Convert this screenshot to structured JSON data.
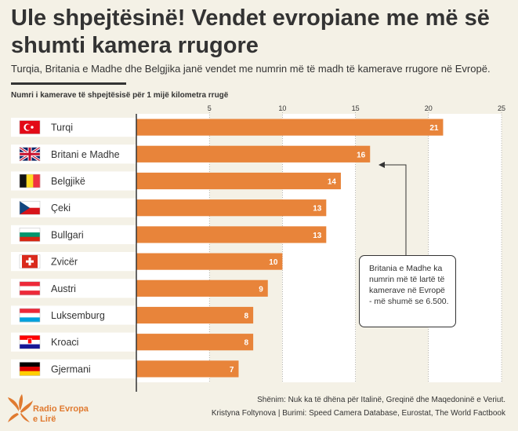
{
  "title": "Ule shpejtësinë! Vendet evropiane me më së shumti kamera rrugore",
  "subtitle": "Turqia, Britania e Madhe dhe Belgjika janë vendet me numrin më të madh të kamerave rrugore në Evropë.",
  "chart_data": {
    "type": "bar",
    "orientation": "horizontal",
    "xlabel": "Numri i kamerave të shpejtësisë për 1 mijë kilometra rrugë",
    "xlim": [
      0,
      25
    ],
    "ticks": [
      5,
      10,
      15,
      20,
      25
    ],
    "categories": [
      "Turqi",
      "Britani e Madhe",
      "Belgjikë",
      "Çeki",
      "Bullgari",
      "Zvicër",
      "Austri",
      "Luksemburg",
      "Kroaci",
      "Gjermani"
    ],
    "values": [
      21,
      16,
      14,
      13,
      13,
      10,
      9,
      8,
      8,
      7
    ],
    "bar_color": "#e8843a",
    "annotation": {
      "target": "Britani e Madhe",
      "text": "Britania e Madhe ka numrin më të lartë të kamerave në Evropë - më shumë se 6.500."
    }
  },
  "flags": {
    "Turqi": "flag-turkey-icon",
    "Britani e Madhe": "flag-uk-icon",
    "Belgjikë": "flag-belgium-icon",
    "Çeki": "flag-czechia-icon",
    "Bullgari": "flag-bulgaria-icon",
    "Zvicër": "flag-switzerland-icon",
    "Austri": "flag-austria-icon",
    "Luksemburg": "flag-luxembourg-icon",
    "Kroaci": "flag-croatia-icon",
    "Gjermani": "flag-germany-icon"
  },
  "footer": {
    "note": "Shënim: Nuk ka të dhëna për Italinë, Greqinë dhe Maqedoninë e Veriut.",
    "credit": "Kristyna Foltynova | Burimi: Speed Camera Database, Eurostat, The World Factbook"
  },
  "brand": {
    "line1": "Radio Evropa",
    "line2": "e Lirë",
    "color": "#e07a30"
  }
}
